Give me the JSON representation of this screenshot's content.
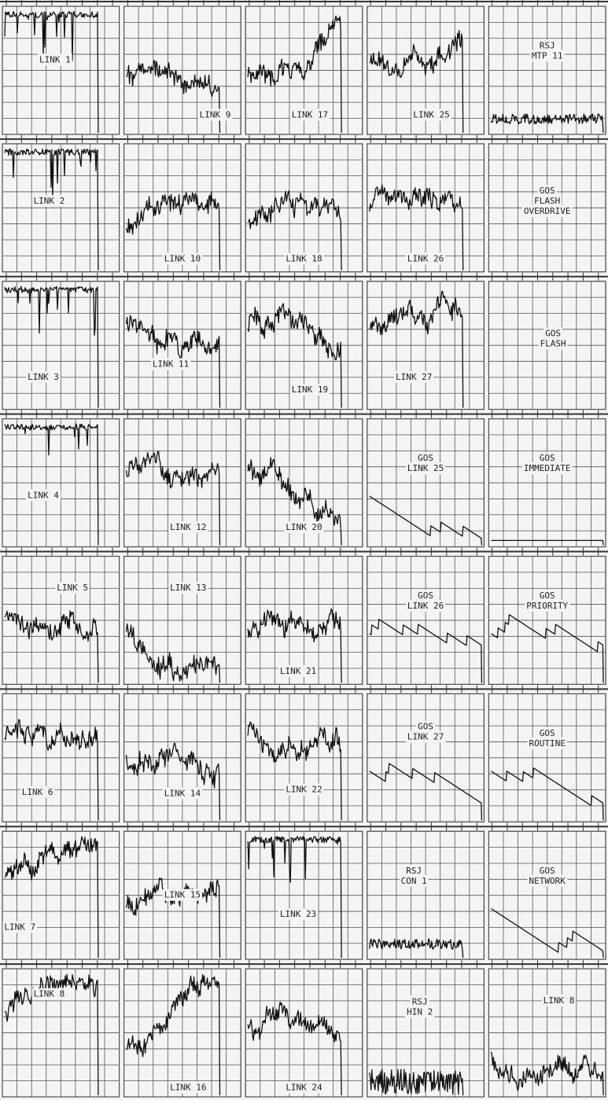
{
  "rows": [
    {
      "panels": [
        {
          "label": [
            "LINK 1"
          ]
        },
        {
          "label": [
            "LINK 9"
          ]
        },
        {
          "label": [
            "LINK 17"
          ]
        },
        {
          "label": [
            "LINK 25"
          ]
        },
        {
          "label": [
            "RSJ",
            "MTP 11"
          ]
        }
      ]
    },
    {
      "panels": [
        {
          "label": [
            "LINK 2"
          ]
        },
        {
          "label": [
            "LINK 10"
          ]
        },
        {
          "label": [
            "LINK 18"
          ]
        },
        {
          "label": [
            "LINK 26"
          ]
        },
        {
          "label": [
            "GOS",
            "FLASH",
            "OVERDRIVE"
          ]
        }
      ]
    },
    {
      "panels": [
        {
          "label": [
            "LINK 3"
          ]
        },
        {
          "label": [
            "LINK 11"
          ]
        },
        {
          "label": [
            "LINK 19"
          ]
        },
        {
          "label": [
            "LINK 27"
          ]
        },
        {
          "label": [
            "GOS",
            "FLASH"
          ]
        }
      ]
    },
    {
      "panels": [
        {
          "label": [
            "LINK 4"
          ]
        },
        {
          "label": [
            "LINK 12"
          ]
        },
        {
          "label": [
            "LINK 20"
          ]
        },
        {
          "label": [
            "GOS",
            "LINK 25"
          ]
        },
        {
          "label": [
            "GOS",
            "IMMEDIATE"
          ]
        }
      ]
    },
    {
      "panels": [
        {
          "label": [
            "LINK 5"
          ]
        },
        {
          "label": [
            "LINK 13"
          ]
        },
        {
          "label": [
            "LINK 21"
          ]
        },
        {
          "label": [
            "GOS",
            "LINK 26"
          ]
        },
        {
          "label": [
            "GOS",
            "PRIORITY"
          ]
        }
      ]
    },
    {
      "panels": [
        {
          "label": [
            "LINK 6"
          ]
        },
        {
          "label": [
            "LINK 14"
          ]
        },
        {
          "label": [
            "LINK 22"
          ]
        },
        {
          "label": [
            "GOS",
            "LINK 27"
          ]
        },
        {
          "label": [
            "GOS",
            "ROUTINE"
          ]
        }
      ]
    },
    {
      "panels": [
        {
          "label": [
            "LINK 7"
          ]
        },
        {
          "label": [
            "LINK 15"
          ]
        },
        {
          "label": [
            "LINK 23"
          ]
        },
        {
          "label": [
            "RSJ",
            "CON 1"
          ]
        },
        {
          "label": [
            "GOS",
            "NETWORK"
          ]
        }
      ]
    },
    {
      "panels": [
        {
          "label": [
            "LINK 8"
          ]
        },
        {
          "label": [
            "LINK 16"
          ]
        },
        {
          "label": [
            "LINK 24"
          ]
        },
        {
          "label": [
            "RSJ",
            "HIN 2"
          ]
        },
        {
          "label": [
            "LINK 8"
          ]
        }
      ]
    }
  ]
}
